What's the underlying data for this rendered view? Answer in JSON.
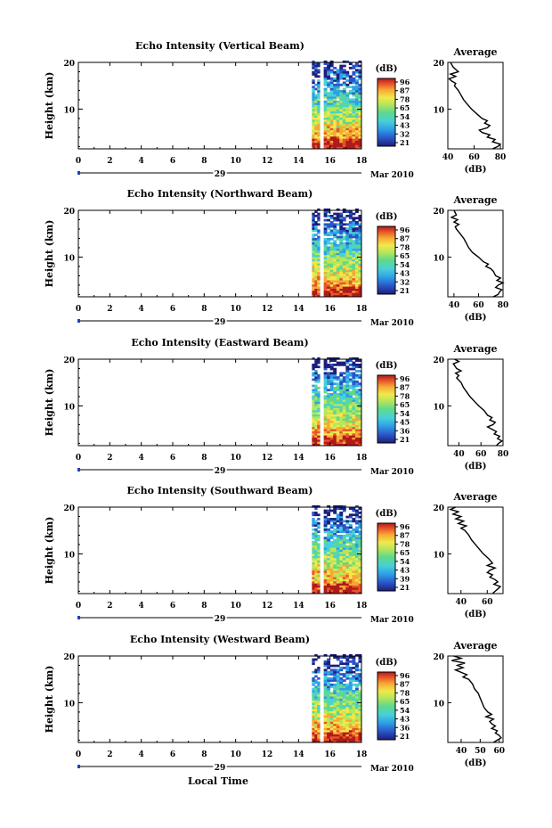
{
  "figure": {
    "xlabel": "Local Time"
  },
  "colorbar": {
    "unit_label": "(dB)",
    "ticks": {
      "default": [
        "96",
        "87",
        "78",
        "65",
        "54",
        "43",
        "32",
        "21"
      ],
      "panel3": [
        "96",
        "87",
        "78",
        "65",
        "54",
        "45",
        "36",
        "21"
      ],
      "panel4": [
        "96",
        "87",
        "78",
        "65",
        "54",
        "43",
        "39",
        "21"
      ],
      "panel5": [
        "96",
        "87",
        "78",
        "65",
        "54",
        "43",
        "36",
        "21"
      ]
    },
    "colors": [
      "#1e1e7a",
      "#2a55c8",
      "#2fa0e6",
      "#48d0d8",
      "#5fd98a",
      "#b8e65a",
      "#f2e84a",
      "#f7a835",
      "#e8542a",
      "#b01a1a"
    ]
  },
  "chart_data": [
    {
      "type": "heatmap",
      "title": "Echo Intensity (Vertical Beam)",
      "ylabel": "Height (km)",
      "x_ticks": [
        "0",
        "2",
        "4",
        "6",
        "8",
        "10",
        "12",
        "14",
        "16",
        "18"
      ],
      "xlim": [
        0,
        18
      ],
      "y_ticks": [
        "20",
        "10"
      ],
      "ylim": [
        1.5,
        20
      ],
      "data_time_ranges": [
        [
          14.85,
          15.35
        ],
        [
          15.6,
          18
        ]
      ],
      "date_day": "29",
      "date_month": "Mar 2010",
      "colorbar_key": "default",
      "average": {
        "title": "Average",
        "xlabel": "(dB)",
        "x_ticks": [
          "40",
          "60",
          "80"
        ],
        "xlim": [
          40,
          82
        ],
        "y_ticks": [
          "20",
          "10"
        ],
        "height_km": [
          20,
          19,
          18,
          17.5,
          17,
          16.5,
          16,
          15.5,
          15,
          14,
          13,
          12,
          11,
          10,
          9,
          8,
          7.5,
          7,
          6.5,
          6,
          5.5,
          5,
          4.5,
          4,
          3.5,
          3,
          2.5,
          2,
          1.5
        ],
        "db": [
          42,
          44,
          48,
          42,
          46,
          41,
          43,
          46,
          45,
          48,
          50,
          52,
          55,
          58,
          62,
          66,
          70,
          68,
          72,
          70,
          64,
          66,
          72,
          70,
          76,
          74,
          80,
          78,
          74
        ]
      }
    },
    {
      "type": "heatmap",
      "title": "Echo Intensity (Northward Beam)",
      "ylabel": "Height (km)",
      "x_ticks": [
        "0",
        "2",
        "4",
        "6",
        "8",
        "10",
        "12",
        "14",
        "16",
        "18"
      ],
      "xlim": [
        0,
        18
      ],
      "y_ticks": [
        "20",
        "10"
      ],
      "ylim": [
        1.5,
        20
      ],
      "data_time_ranges": [
        [
          14.85,
          15.35
        ],
        [
          15.6,
          18
        ]
      ],
      "date_day": "29",
      "date_month": "Mar 2010",
      "colorbar_key": "default",
      "average": {
        "title": "Average",
        "xlabel": "(dB)",
        "x_ticks": [
          "40",
          "60",
          "80"
        ],
        "xlim": [
          35,
          80
        ],
        "y_ticks": [
          "20",
          "10"
        ],
        "height_km": [
          20,
          19,
          18.5,
          18,
          17.5,
          17,
          16.5,
          16,
          15,
          14,
          13,
          12,
          11,
          10,
          9,
          8.5,
          8,
          7.5,
          7,
          6,
          5.5,
          5,
          4.5,
          4,
          3.5,
          3,
          2.5,
          2,
          1.5
        ],
        "db": [
          40,
          42,
          38,
          43,
          40,
          44,
          41,
          42,
          45,
          48,
          50,
          52,
          55,
          60,
          64,
          68,
          66,
          70,
          72,
          74,
          78,
          75,
          80,
          76,
          74,
          79,
          77,
          76,
          72
        ]
      }
    },
    {
      "type": "heatmap",
      "title": "Echo Intensity (Eastward Beam)",
      "ylabel": "Height (km)",
      "x_ticks": [
        "0",
        "2",
        "4",
        "6",
        "8",
        "10",
        "12",
        "14",
        "16",
        "18"
      ],
      "xlim": [
        0,
        18
      ],
      "y_ticks": [
        "20",
        "10"
      ],
      "ylim": [
        1.5,
        20
      ],
      "data_time_ranges": [
        [
          14.85,
          15.35
        ],
        [
          15.6,
          18
        ]
      ],
      "date_day": "29",
      "date_month": "Mar 2010",
      "colorbar_key": "panel3",
      "average": {
        "title": "Average",
        "xlabel": "(dB)",
        "x_ticks": [
          "40",
          "60",
          "80"
        ],
        "xlim": [
          30,
          80
        ],
        "y_ticks": [
          "20",
          "10"
        ],
        "height_km": [
          20,
          19.5,
          19,
          18,
          17.5,
          17,
          16.5,
          16,
          15,
          14,
          13,
          12,
          11,
          10,
          9,
          8,
          7.5,
          7,
          6.5,
          6,
          5.5,
          5,
          4.5,
          4,
          3.5,
          3,
          2.5,
          2,
          1.5
        ],
        "db": [
          36,
          40,
          35,
          38,
          42,
          37,
          40,
          38,
          42,
          44,
          47,
          50,
          54,
          58,
          63,
          66,
          70,
          68,
          73,
          71,
          66,
          70,
          74,
          72,
          77,
          75,
          79,
          76,
          74
        ]
      }
    },
    {
      "type": "heatmap",
      "title": "Echo Intensity (Southward Beam)",
      "ylabel": "Height (km)",
      "x_ticks": [
        "0",
        "2",
        "4",
        "6",
        "8",
        "10",
        "12",
        "14",
        "16",
        "18"
      ],
      "xlim": [
        0,
        18
      ],
      "y_ticks": [
        "20",
        "10"
      ],
      "ylim": [
        1.5,
        20
      ],
      "data_time_ranges": [
        [
          14.85,
          15.35
        ],
        [
          15.6,
          18
        ]
      ],
      "date_day": "29",
      "date_month": "Mar 2010",
      "colorbar_key": "panel4",
      "average": {
        "title": "Average",
        "xlabel": "(dB)",
        "x_ticks": [
          "40",
          "60"
        ],
        "xlim": [
          30,
          72
        ],
        "y_ticks": [
          "20",
          "10"
        ],
        "height_km": [
          20,
          19.5,
          19,
          18.5,
          18,
          17.5,
          17,
          16.5,
          16,
          15.5,
          15,
          14,
          13,
          12,
          11,
          10,
          9,
          8,
          7.5,
          7,
          6.5,
          6,
          5.5,
          5,
          4.5,
          4,
          3.5,
          3,
          2.5,
          2,
          1.5
        ],
        "db": [
          36,
          32,
          38,
          34,
          40,
          36,
          42,
          38,
          44,
          40,
          43,
          46,
          48,
          51,
          54,
          57,
          61,
          64,
          60,
          66,
          62,
          60,
          64,
          62,
          66,
          68,
          65,
          70,
          68,
          66,
          64
        ]
      }
    },
    {
      "type": "heatmap",
      "title": "Echo Intensity (Westward Beam)",
      "ylabel": "Height (km)",
      "x_ticks": [
        "0",
        "2",
        "4",
        "6",
        "8",
        "10",
        "12",
        "14",
        "16",
        "18"
      ],
      "xlim": [
        0,
        18
      ],
      "y_ticks": [
        "20",
        "10"
      ],
      "ylim": [
        1.5,
        20
      ],
      "data_time_ranges": [
        [
          14.85,
          15.35
        ],
        [
          15.6,
          18
        ]
      ],
      "date_day": "29",
      "date_month": "Mar 2010",
      "colorbar_key": "panel5",
      "average": {
        "title": "Average",
        "xlabel": "(dB)",
        "x_ticks": [
          "40",
          "50",
          "60"
        ],
        "xlim": [
          33,
          62
        ],
        "y_ticks": [
          "20",
          "10"
        ],
        "height_km": [
          20,
          19.5,
          19,
          18.5,
          18,
          17.5,
          17,
          16.5,
          16,
          15.5,
          15,
          14,
          13,
          12,
          11,
          10,
          9,
          8,
          7.5,
          7,
          6.5,
          6,
          5.5,
          5,
          4.5,
          4,
          3.5,
          3,
          2.5,
          2,
          1.5
        ],
        "db": [
          36,
          40,
          35,
          42,
          38,
          41,
          37,
          40,
          43,
          41,
          44,
          46,
          47,
          49,
          50,
          51,
          52,
          54,
          56,
          53,
          57,
          55,
          56,
          58,
          56,
          59,
          58,
          60,
          61,
          59,
          57
        ]
      }
    }
  ]
}
